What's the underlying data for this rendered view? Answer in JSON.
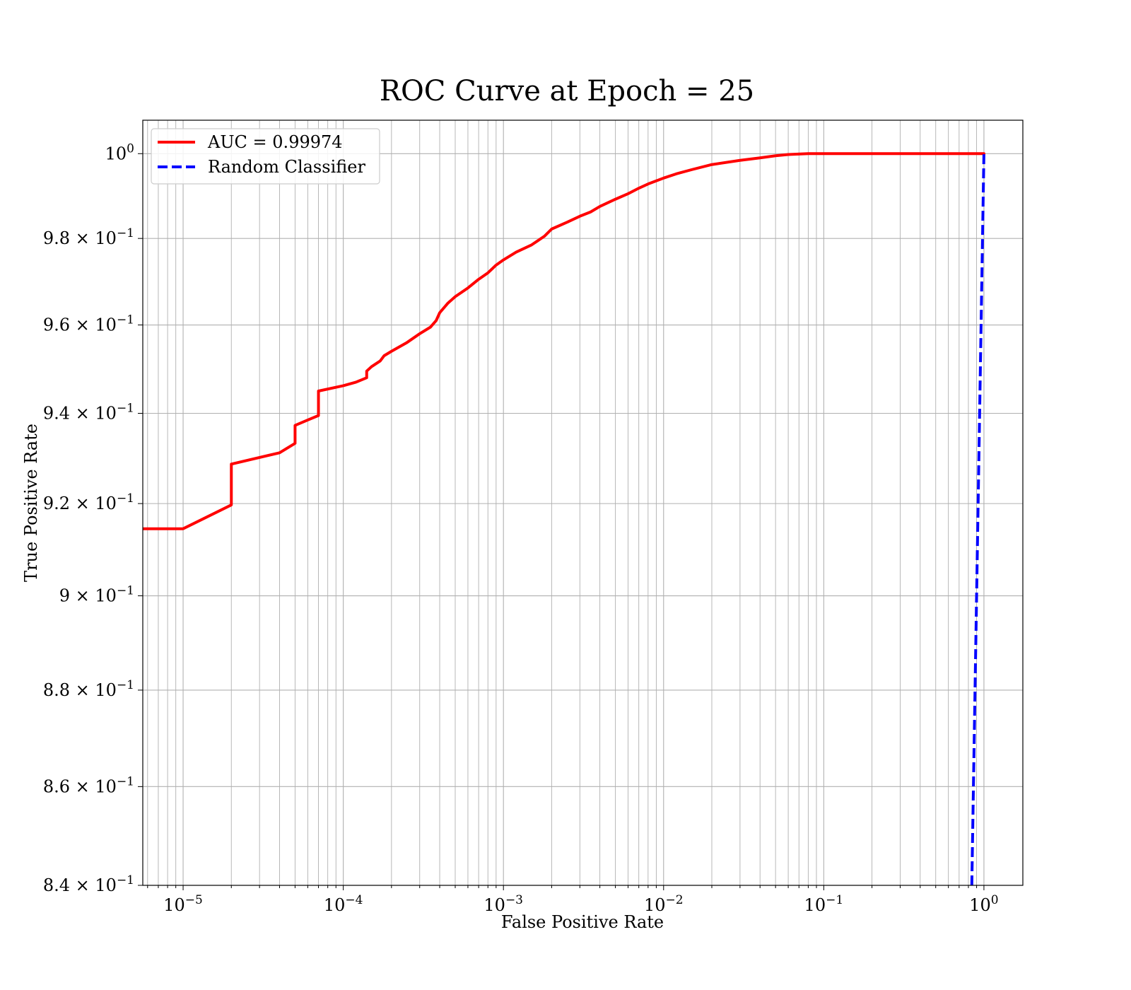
{
  "chart_data": {
    "type": "line",
    "title": "ROC Curve at Epoch = 25",
    "xlabel": "False Positive Rate",
    "ylabel": "True Positive Rate",
    "xscale": "log",
    "yscale": "log",
    "xlim": [
      5.6e-06,
      1.75
    ],
    "ylim": [
      0.84,
      1.008
    ],
    "grid": true,
    "legend_position": "upper-left",
    "x_ticks": [
      {
        "value": 1e-05,
        "base": "10",
        "exp": "−5"
      },
      {
        "value": 0.0001,
        "base": "10",
        "exp": "−4"
      },
      {
        "value": 0.001,
        "base": "10",
        "exp": "−3"
      },
      {
        "value": 0.01,
        "base": "10",
        "exp": "−2"
      },
      {
        "value": 0.1,
        "base": "10",
        "exp": "−1"
      },
      {
        "value": 1,
        "base": "10",
        "exp": "0"
      }
    ],
    "y_ticks": [
      {
        "value": 1.0,
        "mant": "",
        "base": "10",
        "exp": "0"
      },
      {
        "value": 0.98,
        "mant": "9.8 × ",
        "base": "10",
        "exp": "−1"
      },
      {
        "value": 0.96,
        "mant": "9.6 × ",
        "base": "10",
        "exp": "−1"
      },
      {
        "value": 0.94,
        "mant": "9.4 × ",
        "base": "10",
        "exp": "−1"
      },
      {
        "value": 0.92,
        "mant": "9.2 × ",
        "base": "10",
        "exp": "−1"
      },
      {
        "value": 0.9,
        "mant": "9 × ",
        "base": "10",
        "exp": "−1"
      },
      {
        "value": 0.88,
        "mant": "8.8 × ",
        "base": "10",
        "exp": "−1"
      },
      {
        "value": 0.86,
        "mant": "8.6 × ",
        "base": "10",
        "exp": "−1"
      },
      {
        "value": 0.84,
        "mant": "8.4 × ",
        "base": "10",
        "exp": "−1"
      }
    ],
    "series": [
      {
        "name": "AUC = 0.99974",
        "color": "#ff0000",
        "style": "solid",
        "x": [
          5.6e-06,
          1e-05,
          2e-05,
          2e-05,
          4e-05,
          5e-05,
          5e-05,
          6e-05,
          7e-05,
          7e-05,
          0.0001,
          0.00012,
          0.00014,
          0.00014,
          0.00015,
          0.00017,
          0.00018,
          0.0002,
          0.00025,
          0.0003,
          0.00035,
          0.00038,
          0.0004,
          0.00045,
          0.0005,
          0.0006,
          0.0007,
          0.0008,
          0.0009,
          0.001,
          0.0012,
          0.0015,
          0.0018,
          0.002,
          0.0025,
          0.003,
          0.0035,
          0.004,
          0.005,
          0.006,
          0.007,
          0.008,
          0.01,
          0.012,
          0.015,
          0.02,
          0.03,
          0.04,
          0.05,
          0.06,
          0.08,
          0.1,
          0.3,
          0.6,
          1.0
        ],
        "y": [
          0.9145,
          0.9145,
          0.9197,
          0.9287,
          0.9312,
          0.9333,
          0.9373,
          0.9385,
          0.9395,
          0.945,
          0.9462,
          0.947,
          0.948,
          0.9495,
          0.9505,
          0.9518,
          0.953,
          0.954,
          0.956,
          0.958,
          0.9595,
          0.961,
          0.9628,
          0.965,
          0.9665,
          0.9685,
          0.9705,
          0.972,
          0.9738,
          0.975,
          0.9768,
          0.9785,
          0.9805,
          0.9822,
          0.9838,
          0.9852,
          0.9862,
          0.9875,
          0.9892,
          0.9905,
          0.9918,
          0.9928,
          0.9942,
          0.9952,
          0.9962,
          0.9974,
          0.9984,
          0.999,
          0.9995,
          0.9998,
          1.0,
          1.0,
          1.0,
          1.0,
          1.0
        ]
      },
      {
        "name": "Random Classifier",
        "color": "#0000ff",
        "style": "dashed",
        "x": [
          0.84,
          0.86,
          0.88,
          0.9,
          0.92,
          0.94,
          0.96,
          0.98,
          1.0
        ],
        "y": [
          0.84,
          0.86,
          0.88,
          0.9,
          0.92,
          0.94,
          0.96,
          0.98,
          1.0
        ]
      }
    ]
  }
}
